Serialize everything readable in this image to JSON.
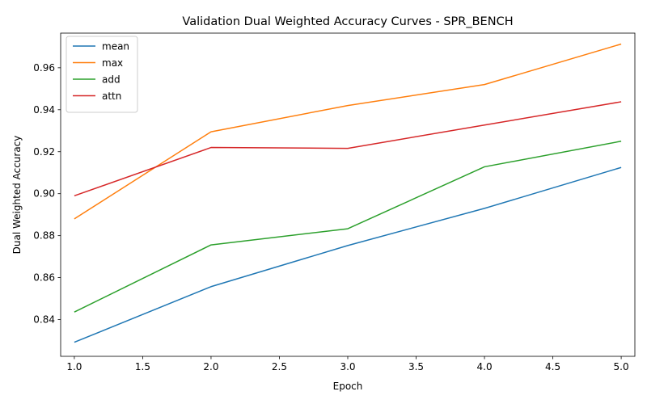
{
  "chart_data": {
    "type": "line",
    "title": "Validation Dual Weighted Accuracy Curves - SPR_BENCH",
    "xlabel": "Epoch",
    "ylabel": "Dual Weighted Accuracy",
    "x": [
      1,
      2,
      3,
      4,
      5
    ],
    "xlim": [
      0.9,
      5.1
    ],
    "ylim": [
      0.8225,
      0.9765
    ],
    "xticks": [
      "1.0",
      "1.5",
      "2.0",
      "2.5",
      "3.0",
      "3.5",
      "4.0",
      "4.5",
      "5.0"
    ],
    "yticks": [
      "0.84",
      "0.86",
      "0.88",
      "0.90",
      "0.92",
      "0.94",
      "0.96"
    ],
    "grid": false,
    "legend_position": "top-left",
    "series": [
      {
        "name": "mean",
        "color": "#1f77b4",
        "values": [
          0.8292,
          0.8557,
          0.8753,
          0.893,
          0.9125
        ]
      },
      {
        "name": "max",
        "color": "#ff7f0e",
        "values": [
          0.888,
          0.9295,
          0.942,
          0.952,
          0.9713
        ]
      },
      {
        "name": "add",
        "color": "#2ca02c",
        "values": [
          0.8436,
          0.8756,
          0.8833,
          0.9128,
          0.925
        ]
      },
      {
        "name": "attn",
        "color": "#d62728",
        "values": [
          0.899,
          0.922,
          0.9216,
          0.9327,
          0.9438
        ]
      }
    ]
  }
}
